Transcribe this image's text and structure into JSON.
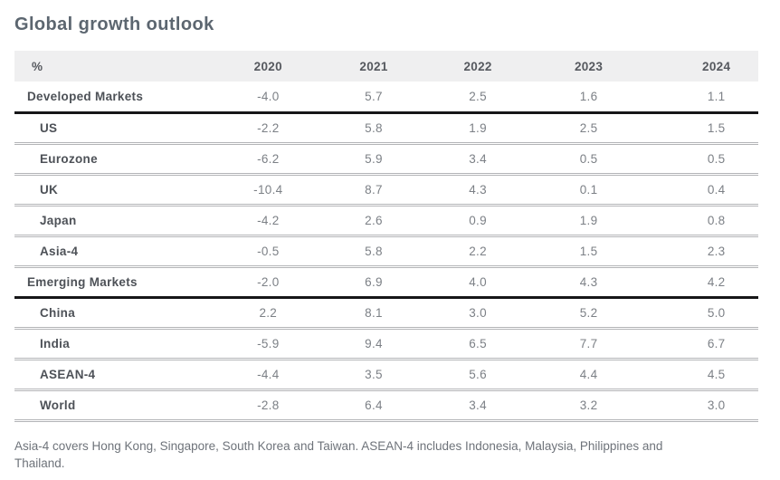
{
  "chart_data": {
    "type": "table",
    "title": "Global growth outlook",
    "unit_header": "%",
    "columns": [
      "2020",
      "2021",
      "2022",
      "2023",
      "2024"
    ],
    "rows": [
      {
        "label": "Developed Markets",
        "group": true,
        "values": [
          "-4.0",
          "5.7",
          "2.5",
          "1.6",
          "1.1"
        ]
      },
      {
        "label": "US",
        "group": false,
        "values": [
          "-2.2",
          "5.8",
          "1.9",
          "2.5",
          "1.5"
        ]
      },
      {
        "label": "Eurozone",
        "group": false,
        "values": [
          "-6.2",
          "5.9",
          "3.4",
          "0.5",
          "0.5"
        ]
      },
      {
        "label": "UK",
        "group": false,
        "values": [
          "-10.4",
          "8.7",
          "4.3",
          "0.1",
          "0.4"
        ]
      },
      {
        "label": "Japan",
        "group": false,
        "values": [
          "-4.2",
          "2.6",
          "0.9",
          "1.9",
          "0.8"
        ]
      },
      {
        "label": "Asia-4",
        "group": false,
        "values": [
          "-0.5",
          "5.8",
          "2.2",
          "1.5",
          "2.3"
        ]
      },
      {
        "label": "Emerging Markets",
        "group": true,
        "values": [
          "-2.0",
          "6.9",
          "4.0",
          "4.3",
          "4.2"
        ]
      },
      {
        "label": "China",
        "group": false,
        "values": [
          "2.2",
          "8.1",
          "3.0",
          "5.2",
          "5.0"
        ]
      },
      {
        "label": "India",
        "group": false,
        "values": [
          "-5.9",
          "9.4",
          "6.5",
          "7.7",
          "6.7"
        ]
      },
      {
        "label": "ASEAN-4",
        "group": false,
        "values": [
          "-4.4",
          "3.5",
          "5.6",
          "4.4",
          "4.5"
        ]
      },
      {
        "label": "World",
        "group": false,
        "values": [
          "-2.8",
          "6.4",
          "3.4",
          "3.2",
          "3.0"
        ]
      }
    ],
    "footnote": "Asia-4 covers Hong Kong, Singapore, South Korea and Taiwan. ASEAN-4 includes Indonesia, Malaysia, Philippines and Thailand.",
    "layout_hints": {
      "grid": "horizontal-rules-only",
      "group_separator": "thick-black",
      "row_separator": "thin-double-gray"
    }
  },
  "colors": {
    "title_text": "#5c6670",
    "header_bg": "#efeff0",
    "header_text": "#55585e",
    "label_text": "#4d5157",
    "value_text": "#7c8086",
    "divider_thin": "#b3b4b7",
    "divider_thick": "#161618",
    "footnote_text": "#6e737a"
  }
}
